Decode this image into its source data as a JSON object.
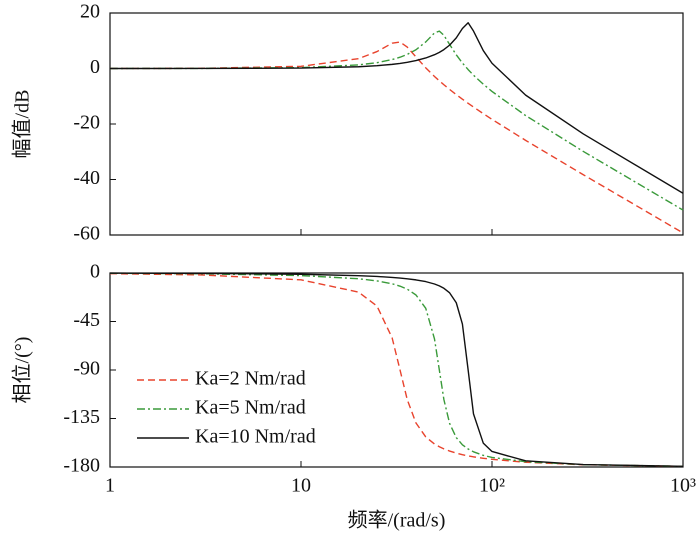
{
  "chart_data": [
    {
      "type": "line",
      "ylabel": "幅值/dB",
      "log_x": true,
      "x": [
        1,
        3,
        10,
        20,
        25,
        30,
        33,
        36,
        40,
        45,
        50,
        53,
        56,
        60,
        65,
        70,
        75,
        80,
        90,
        100,
        150,
        300,
        1000
      ],
      "ylim": [
        -60,
        20
      ],
      "yticks": [
        20,
        0,
        -20,
        -40,
        -60
      ],
      "series": [
        {
          "name": "Ka=2 Nm/rad",
          "color": "#e8432d",
          "dash": "dashed",
          "values": [
            0.0,
            0.07,
            0.78,
            3.55,
            6.1,
            9.12,
            9.52,
            7.72,
            4.16,
            0.24,
            -2.87,
            -4.44,
            -5.86,
            -7.55,
            -9.41,
            -11.06,
            -12.53,
            -13.88,
            -16.26,
            -18.32,
            -25.9,
            -38.24,
            -59.25
          ]
        },
        {
          "name": "Ka=5 Nm/rad",
          "color": "#3a9a3a",
          "dash": "dashdot",
          "values": [
            0.0,
            0.03,
            0.31,
            1.3,
            2.11,
            3.22,
            4.06,
            5.08,
            6.76,
            9.57,
            12.83,
            13.47,
            11.96,
            8.64,
            4.93,
            1.99,
            -0.39,
            -2.4,
            -5.65,
            -8.27,
            -16.95,
            -29.85,
            -51.01
          ]
        },
        {
          "name": "Ka=10 Nm/rad",
          "color": "#111111",
          "dash": "solid",
          "values": [
            0.0,
            0.01,
            0.15,
            0.63,
            1.01,
            1.49,
            1.84,
            2.24,
            2.85,
            3.79,
            4.97,
            5.82,
            6.81,
            8.42,
            11.03,
            14.41,
            16.48,
            13.51,
            6.46,
            1.9,
            -9.59,
            -23.53,
            -44.95
          ]
        }
      ]
    },
    {
      "type": "line",
      "ylabel": "相位/(°)",
      "xlabel": "频率/(rad/s)",
      "log_x": true,
      "x": [
        1,
        3,
        10,
        20,
        25,
        30,
        33,
        36,
        40,
        45,
        50,
        53,
        56,
        60,
        65,
        70,
        75,
        80,
        90,
        100,
        150,
        300,
        1000
      ],
      "xlim": [
        1,
        1000
      ],
      "xticks": [
        1,
        10,
        {
          "value": 100,
          "label": "10²"
        },
        {
          "value": 1000,
          "label": "10³"
        }
      ],
      "ylim": [
        -180,
        0
      ],
      "yticks": [
        0,
        -45,
        -90,
        -135,
        -180
      ],
      "legend": "lower left",
      "series": [
        {
          "name": "Ka=2 Nm/rad",
          "color": "#e8432d",
          "dash": "dashed",
          "values": [
            -0.58,
            -1.76,
            -6.36,
            -17.7,
            -30.7,
            -60.2,
            -90,
            -117.5,
            -139.2,
            -152.1,
            -158.7,
            -161.2,
            -163.2,
            -165.2,
            -167.1,
            -168.6,
            -169.7,
            -170.6,
            -171.9,
            -172.9,
            -175.6,
            -177.9,
            -179.4
          ]
        },
        {
          "name": "Ka=5 Nm/rad",
          "color": "#3a9a3a",
          "dash": "dashdot",
          "values": [
            -0.23,
            -0.69,
            -2.38,
            -5.33,
            -7.33,
            -10.0,
            -12.2,
            -15.0,
            -20.4,
            -32.8,
            -61.2,
            -90,
            -117.5,
            -139.6,
            -152.7,
            -159.4,
            -163.3,
            -165.9,
            -169.2,
            -171.1,
            -175.1,
            -177.8,
            -179.4
          ]
        },
        {
          "name": "Ka=10 Nm/rad",
          "color": "#111111",
          "dash": "solid",
          "values": [
            -0.11,
            -0.34,
            -1.17,
            -2.47,
            -3.22,
            -4.09,
            -4.68,
            -5.34,
            -6.38,
            -8.0,
            -10.2,
            -11.95,
            -14.2,
            -18.4,
            -27.6,
            -47.4,
            -90,
            -130.7,
            -157.8,
            -165.6,
            -174.3,
            -177.7,
            -179.35
          ]
        }
      ]
    }
  ]
}
